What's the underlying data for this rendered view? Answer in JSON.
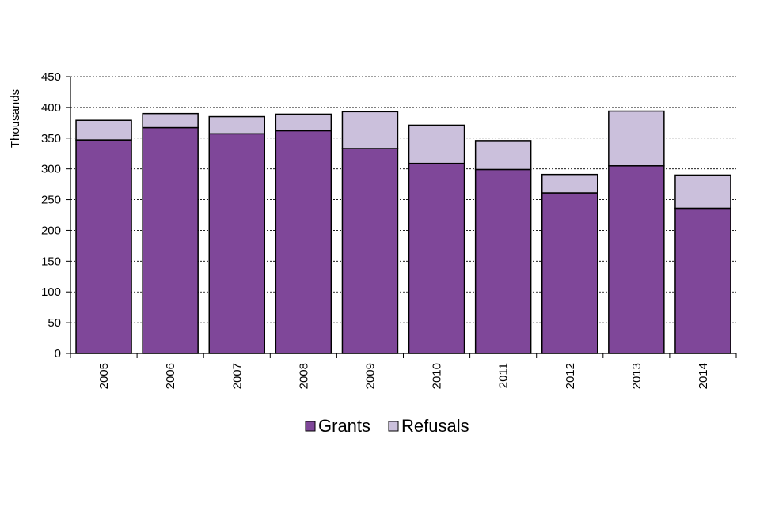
{
  "chart_data": {
    "type": "bar",
    "stacked": true,
    "title": "",
    "xlabel": "",
    "ylabel": "Thousands",
    "ylim": [
      0,
      450
    ],
    "yticks": [
      0,
      50,
      100,
      150,
      200,
      250,
      300,
      350,
      400,
      450
    ],
    "grid": true,
    "legend_position": "bottom",
    "categories": [
      "2005",
      "2006",
      "2007",
      "2008",
      "2009",
      "2010",
      "2011",
      "2012",
      "2013",
      "2014"
    ],
    "series": [
      {
        "name": "Grants",
        "color": "#7f4799",
        "values": [
          347,
          367,
          357,
          362,
          333,
          309,
          299,
          261,
          305,
          236
        ]
      },
      {
        "name": "Refusals",
        "color": "#cbc0dc",
        "values": [
          32,
          23,
          28,
          27,
          60,
          62,
          47,
          30,
          89,
          54
        ]
      }
    ]
  }
}
